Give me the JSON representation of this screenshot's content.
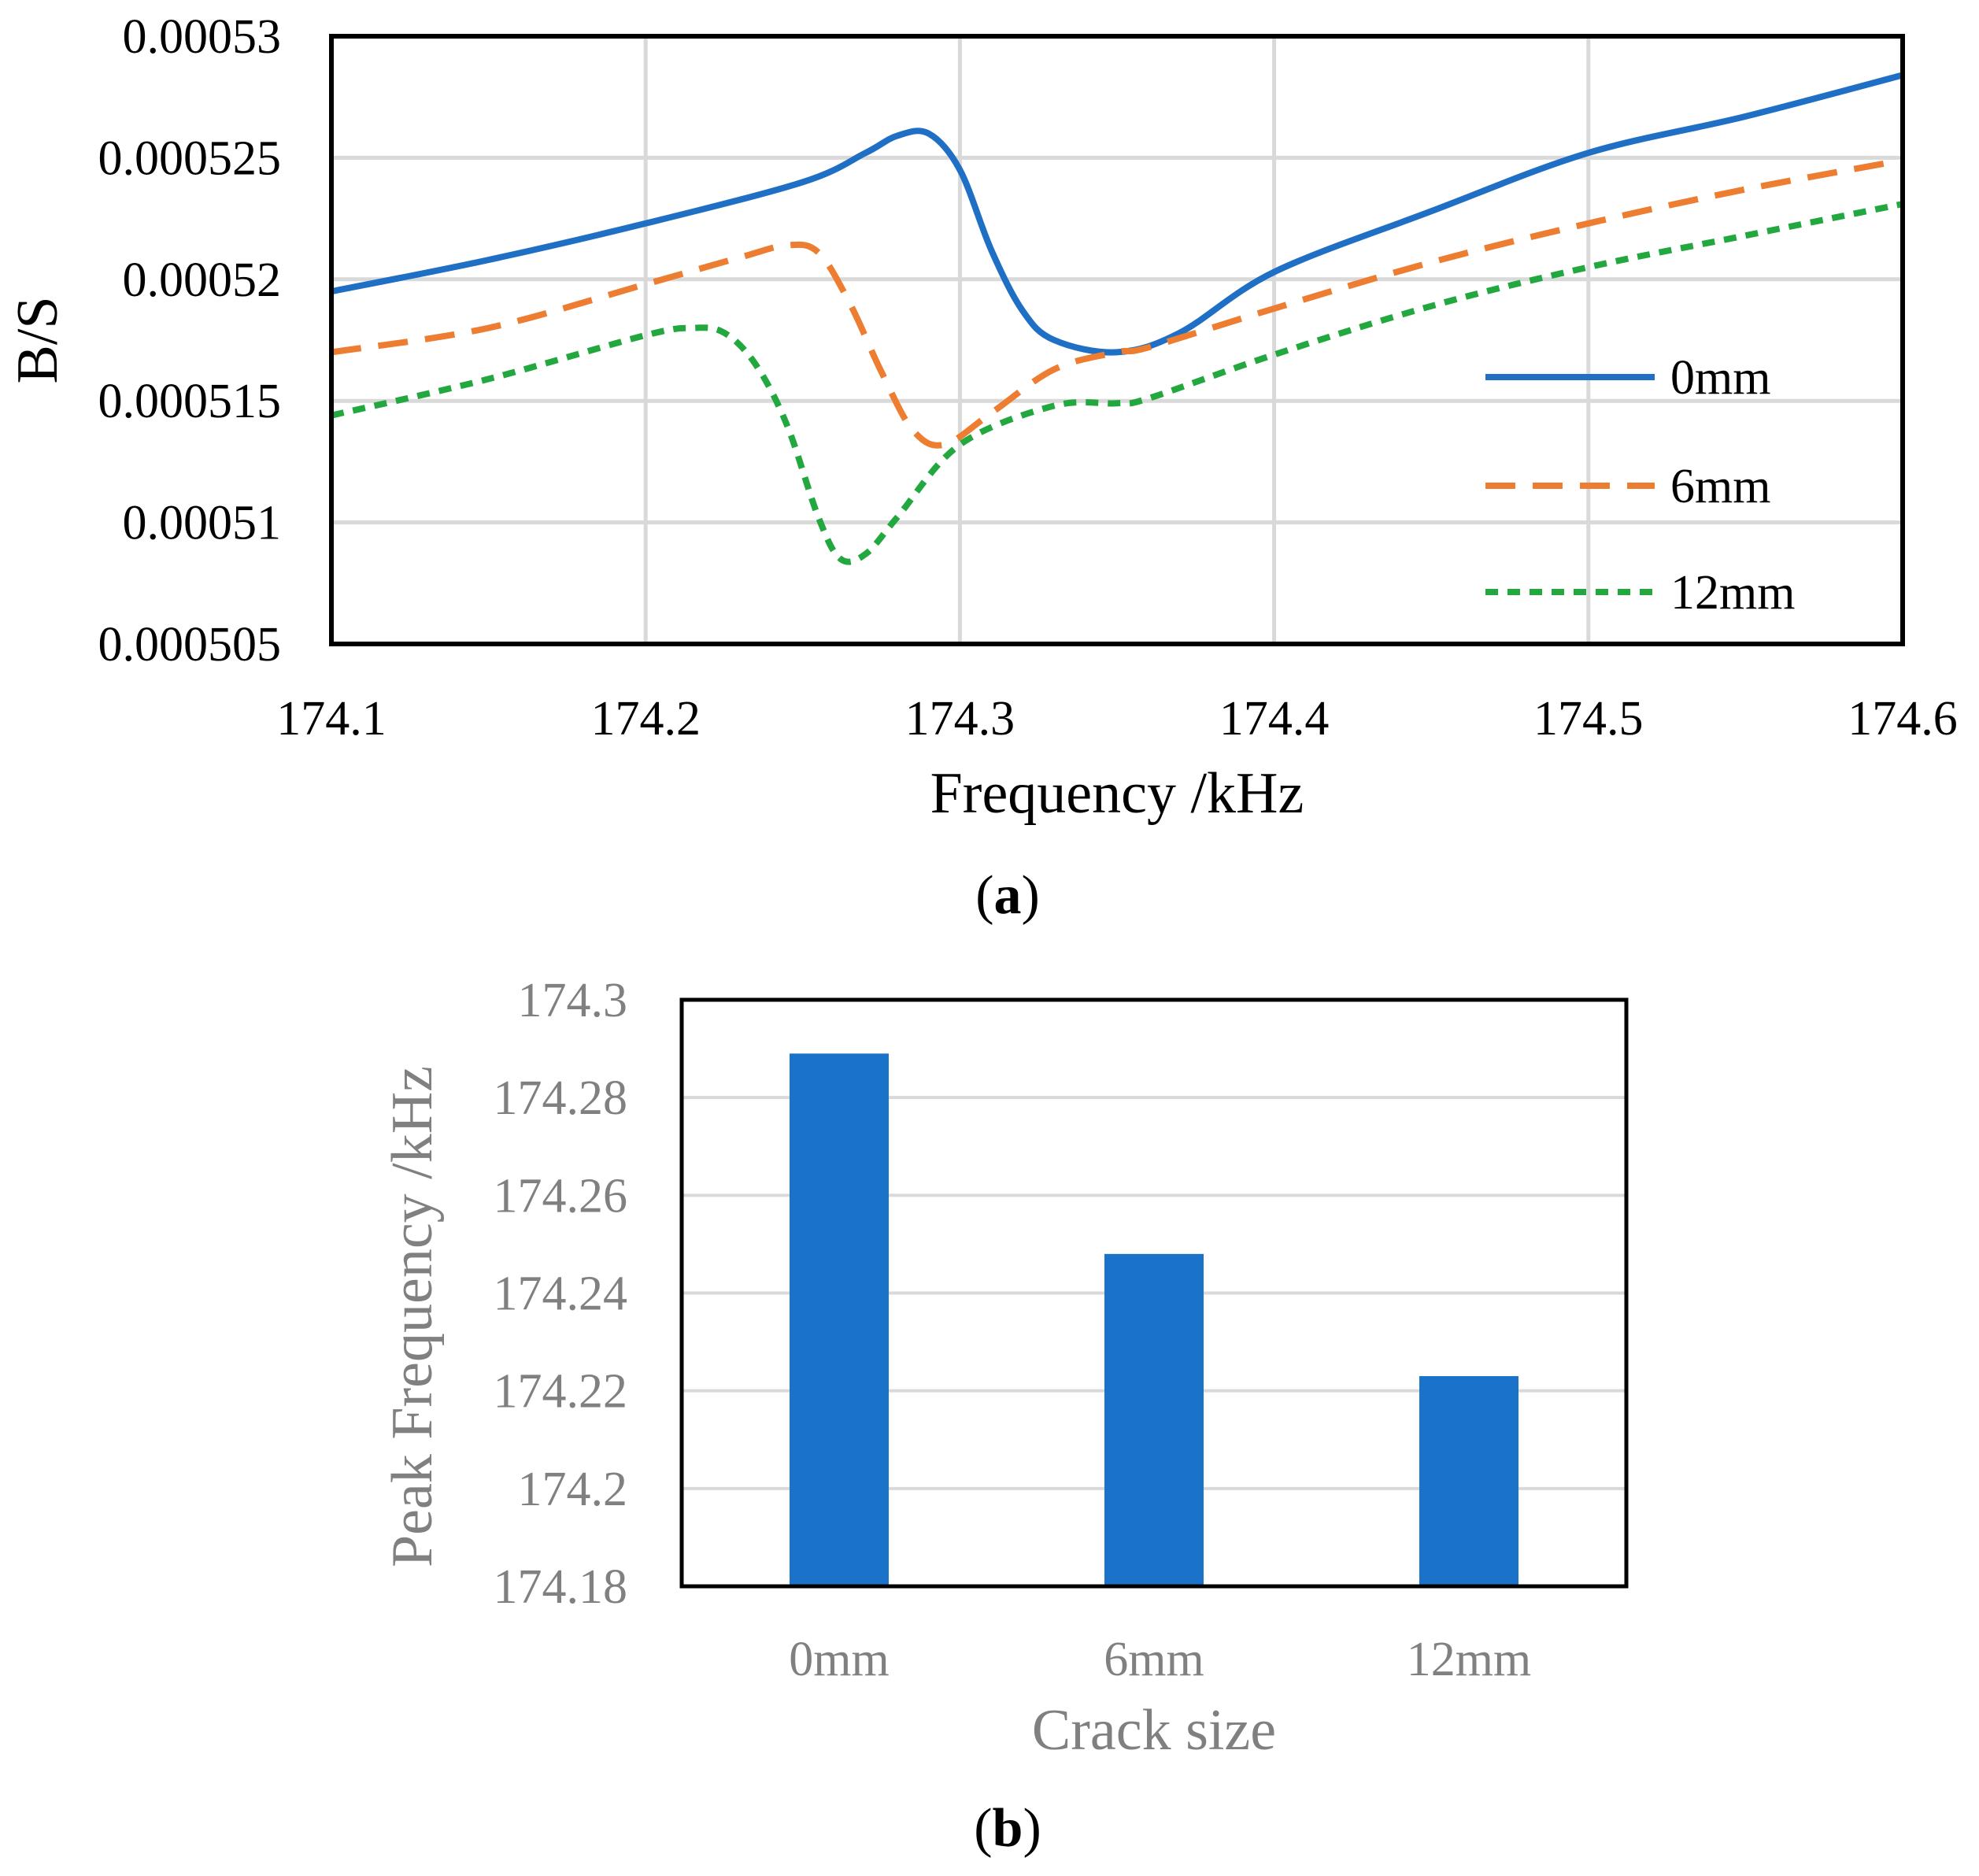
{
  "chart_data": [
    {
      "type": "line",
      "panel_label": "a",
      "xlabel": "Frequency /kHz",
      "ylabel": "B/S",
      "xlim": [
        174.1,
        174.6
      ],
      "ylim": [
        0.000505,
        0.00053
      ],
      "xticks": [
        "174.1",
        "174.2",
        "174.3",
        "174.4",
        "174.5",
        "174.6"
      ],
      "yticks": [
        "0.000505",
        "0.00051",
        "0.000515",
        "0.00052",
        "0.000525",
        "0.00053"
      ],
      "grid": true,
      "legend_position": "right",
      "series": [
        {
          "name": "0mm",
          "color": "#1F6FC5",
          "style": "solid",
          "x": [
            174.1,
            174.15,
            174.2,
            174.25,
            174.27,
            174.28,
            174.29,
            174.3,
            174.31,
            174.32,
            174.33,
            174.35,
            174.37,
            174.4,
            174.45,
            174.5,
            174.55,
            174.6
          ],
          "y": [
            0.0005195,
            0.0005208,
            0.0005223,
            0.000524,
            0.0005252,
            0.0005259,
            0.000526,
            0.0005245,
            0.0005212,
            0.0005187,
            0.0005175,
            0.000517,
            0.0005178,
            0.0005203,
            0.0005228,
            0.0005252,
            0.0005267,
            0.0005284
          ]
        },
        {
          "name": "6mm",
          "color": "#ED7D31",
          "style": "dashed",
          "x": [
            174.1,
            174.15,
            174.2,
            174.23,
            174.245,
            174.255,
            174.265,
            174.275,
            174.285,
            174.295,
            174.31,
            174.33,
            174.35,
            174.36,
            174.4,
            174.45,
            174.5,
            174.55,
            174.6
          ],
          "y": [
            0.000517,
            0.000518,
            0.0005198,
            0.0005209,
            0.0005214,
            0.0005211,
            0.000519,
            0.0005162,
            0.0005138,
            0.0005132,
            0.0005145,
            0.0005163,
            0.000517,
            0.0005172,
            0.0005188,
            0.0005207,
            0.0005223,
            0.0005237,
            0.0005249
          ]
        },
        {
          "name": "12mm",
          "color": "#22A83F",
          "style": "dotted",
          "x": [
            174.1,
            174.15,
            174.2,
            174.215,
            174.225,
            174.235,
            174.245,
            174.255,
            174.262,
            174.27,
            174.28,
            174.3,
            174.33,
            174.35,
            174.36,
            174.4,
            174.45,
            174.5,
            174.55,
            174.6
          ],
          "y": [
            0.0005144,
            0.0005159,
            0.0005177,
            0.000518,
            0.0005178,
            0.0005165,
            0.000514,
            0.0005102,
            0.0005085,
            0.0005087,
            0.0005102,
            0.0005132,
            0.0005148,
            0.0005149,
            0.0005151,
            0.0005169,
            0.0005189,
            0.0005205,
            0.0005218,
            0.0005231
          ]
        }
      ]
    },
    {
      "type": "bar",
      "panel_label": "b",
      "xlabel": "Crack size",
      "ylabel": "Peak Frequency /kHz",
      "categories": [
        "0mm",
        "6mm",
        "12mm"
      ],
      "values": [
        174.289,
        174.248,
        174.223
      ],
      "ylim": [
        174.18,
        174.3
      ],
      "yticks": [
        "174.18",
        "174.2",
        "174.22",
        "174.24",
        "174.26",
        "174.28",
        "174.3"
      ],
      "grid": true,
      "color": "#1A73C8"
    }
  ]
}
